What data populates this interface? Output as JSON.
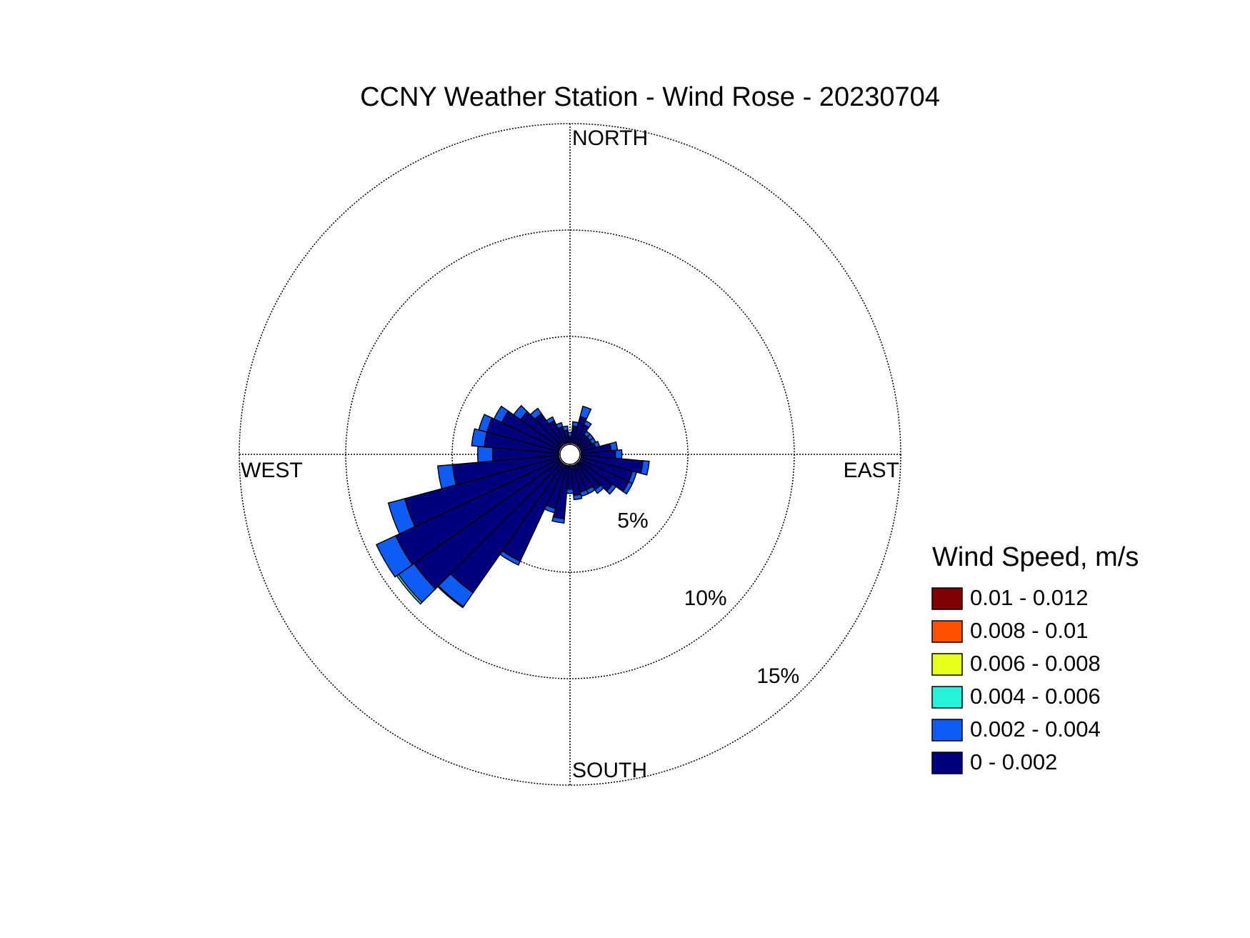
{
  "chart_data": {
    "type": "windrose",
    "title": "CCNY Weather Station - Wind Rose - 20230704",
    "legend_title": "Wind Speed, m/s",
    "compass_labels": [
      "NORTH",
      "EAST",
      "SOUTH",
      "WEST"
    ],
    "x": [
      0,
      10,
      20,
      30,
      40,
      50,
      60,
      70,
      80,
      90,
      100,
      110,
      120,
      130,
      140,
      150,
      160,
      170,
      180,
      190,
      200,
      210,
      220,
      230,
      240,
      250,
      260,
      270,
      280,
      290,
      300,
      310,
      320,
      330,
      340,
      350
    ],
    "series": [
      {
        "name": "0 - 0.002",
        "color": "#00007f",
        "values": [
          0.3,
          0.8,
          1.3,
          1.0,
          0.6,
          0.6,
          0.6,
          0.7,
          1.4,
          1.6,
          2.9,
          2.5,
          2.5,
          1.9,
          1.5,
          1.3,
          1.3,
          1.4,
          1.1,
          2.5,
          2.1,
          5.0,
          7.4,
          8.4,
          8.5,
          7.5,
          5.0,
          3.1,
          3.5,
          3.5,
          3.0,
          2.3,
          1.8,
          1.2,
          0.8,
          0.6
        ]
      },
      {
        "name": "0.002 - 0.004",
        "color": "#0f5cf5",
        "values": [
          0.2,
          0.2,
          0.5,
          0.2,
          0.2,
          0.2,
          0.2,
          0.2,
          0.3,
          0.3,
          0.3,
          0.2,
          0.2,
          0.2,
          0.2,
          0.2,
          0.2,
          0.2,
          0.2,
          0.2,
          0.2,
          0.2,
          0.8,
          0.9,
          1.0,
          0.8,
          0.7,
          0.7,
          0.6,
          0.4,
          0.4,
          0.4,
          0.3,
          0.2,
          0.2,
          0.2
        ]
      },
      {
        "name": "0.004 - 0.006",
        "color": "#26f2d9",
        "values": [
          0,
          0,
          0,
          0,
          0,
          0,
          0,
          0,
          0,
          0,
          0,
          0,
          0,
          0,
          0,
          0,
          0,
          0,
          0,
          0,
          0,
          0,
          0.05,
          0.1,
          0,
          0,
          0,
          0,
          0,
          0,
          0,
          0,
          0,
          0,
          0,
          0
        ]
      },
      {
        "name": "0.006 - 0.008",
        "color": "#e5ff1a",
        "values": [
          0,
          0,
          0,
          0,
          0,
          0,
          0,
          0,
          0,
          0,
          0,
          0,
          0,
          0,
          0,
          0,
          0,
          0,
          0,
          0,
          0,
          0,
          0,
          0,
          0,
          0,
          0,
          0,
          0,
          0,
          0,
          0,
          0,
          0,
          0,
          0
        ]
      },
      {
        "name": "0.008 - 0.01",
        "color": "#ff4f00",
        "values": [
          0,
          0,
          0,
          0,
          0,
          0,
          0,
          0,
          0,
          0,
          0,
          0,
          0,
          0,
          0,
          0,
          0,
          0,
          0,
          0,
          0,
          0,
          0,
          0,
          0,
          0,
          0,
          0,
          0,
          0,
          0,
          0,
          0,
          0,
          0,
          0
        ]
      },
      {
        "name": "0.01 - 0.012",
        "color": "#7f0000",
        "values": [
          0,
          0,
          0,
          0,
          0,
          0,
          0,
          0,
          0,
          0,
          0,
          0,
          0,
          0,
          0,
          0,
          0,
          0,
          0,
          0,
          0,
          0,
          0,
          0,
          0,
          0,
          0,
          0,
          0,
          0,
          0,
          0,
          0,
          0,
          0,
          0
        ]
      }
    ],
    "rlim": [
      0,
      15
    ],
    "rticks": [
      {
        "value": 5,
        "label": "5%"
      },
      {
        "value": 10,
        "label": "10%"
      },
      {
        "value": 15,
        "label": "15%"
      }
    ],
    "grid": true
  }
}
